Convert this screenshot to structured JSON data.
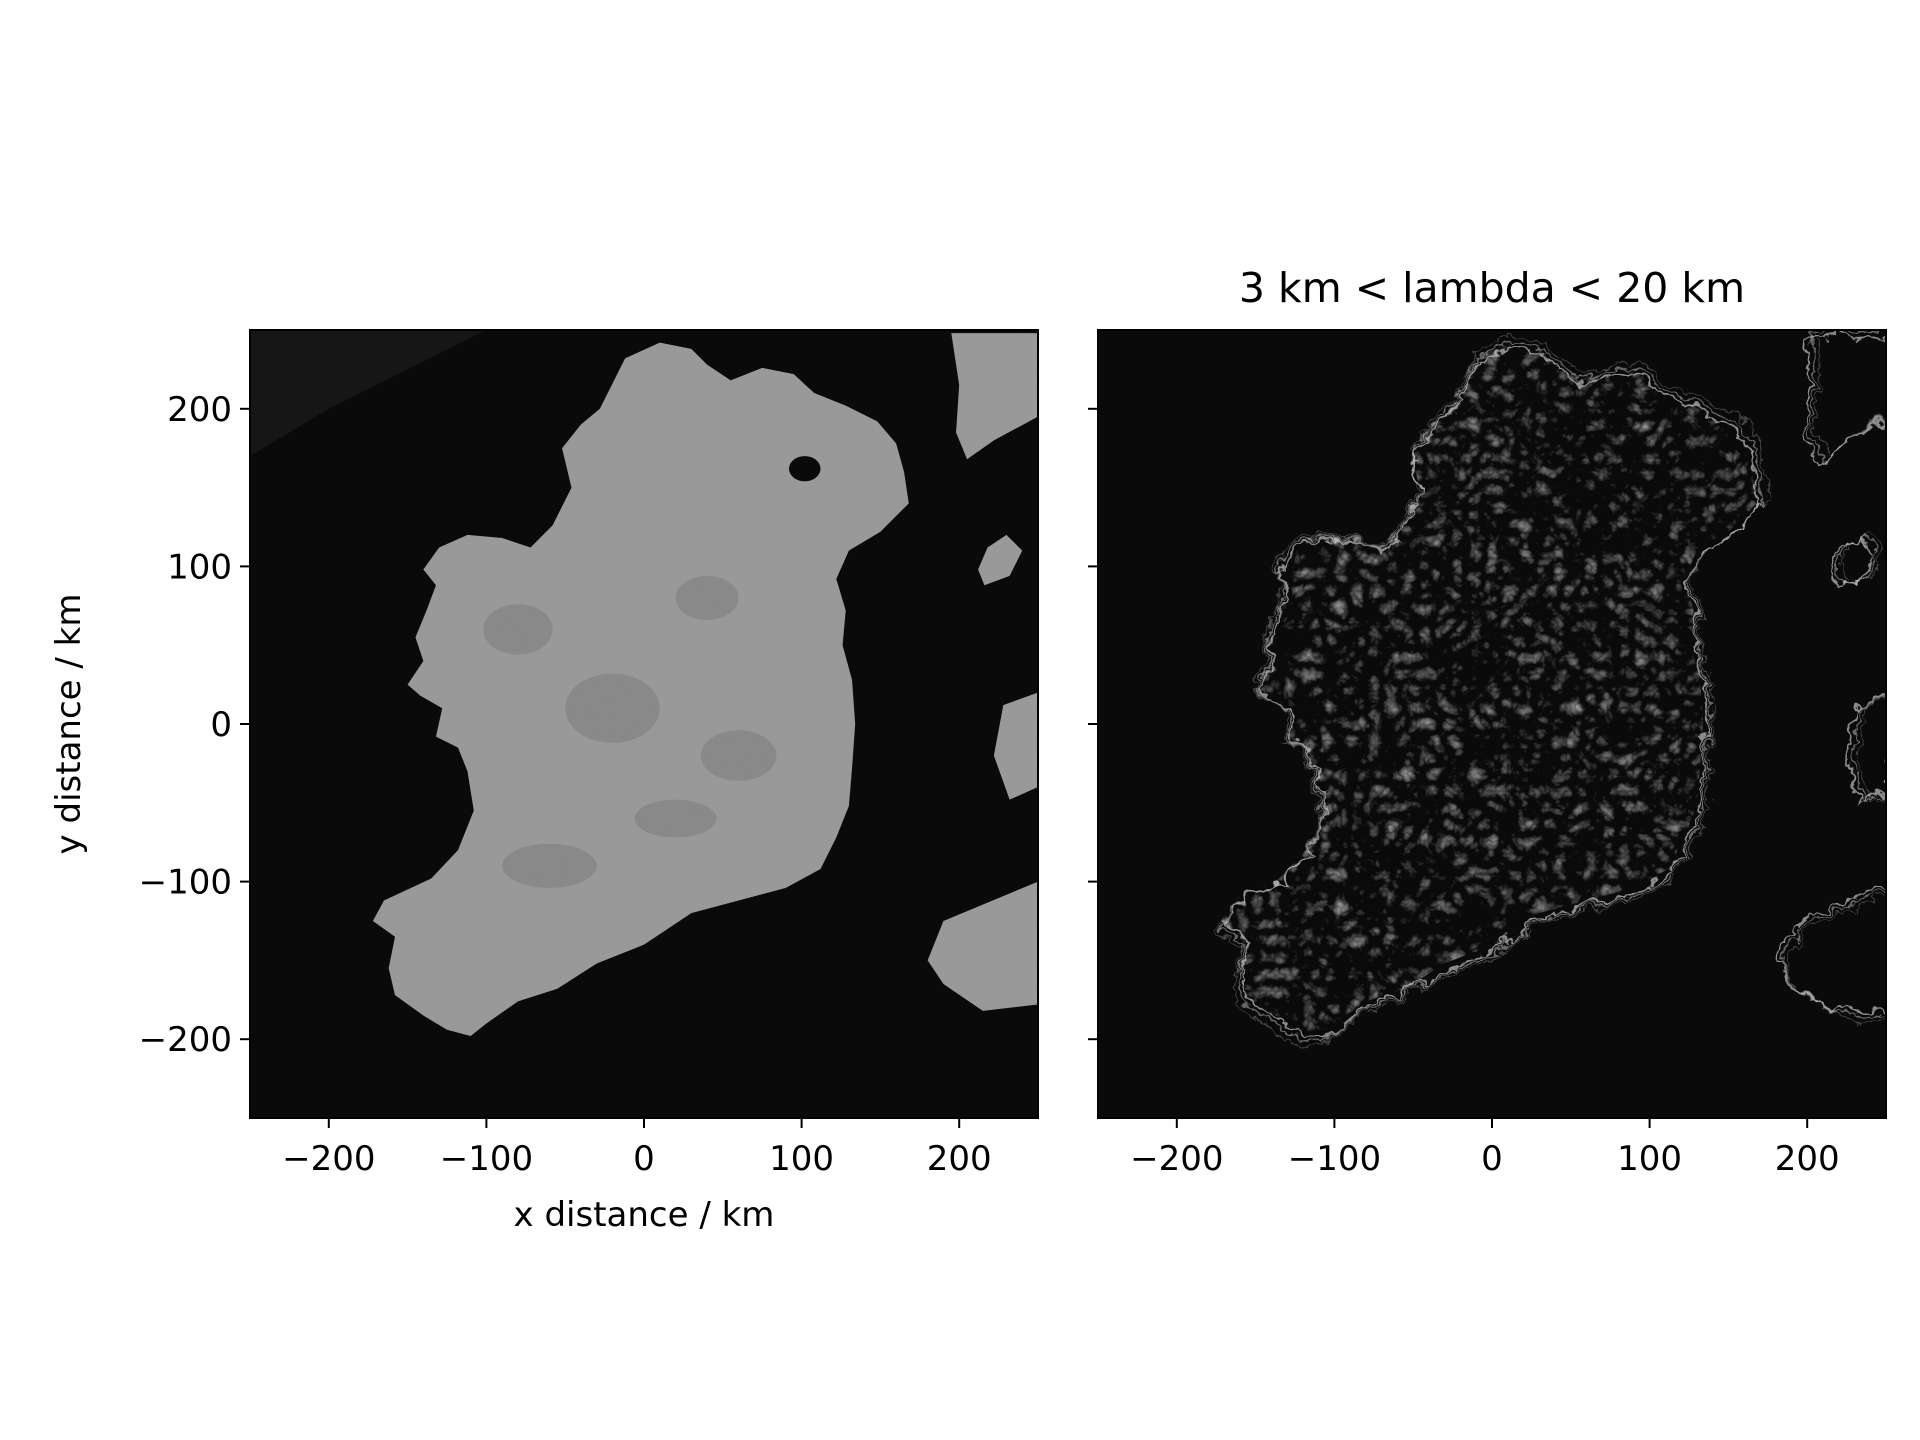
{
  "figure": {
    "colors": {
      "background": "#ffffff",
      "panel_background": "#0a0a0a",
      "land": "#9c9c9c",
      "land_dark": "#7f7f7f",
      "edge_highlight": "#b8b8b8",
      "axis": "#000000"
    },
    "panels": [
      {
        "id": "original",
        "title": "",
        "xlabel": "x distance / km",
        "ylabel": "y distance / km",
        "xlim": [
          -250,
          250
        ],
        "ylim": [
          -250,
          250
        ],
        "xticks": [
          -200,
          -100,
          0,
          100,
          200
        ],
        "yticks": [
          -200,
          -100,
          0,
          100,
          200
        ],
        "xtick_labels": [
          "−200",
          "−100",
          "0",
          "100",
          "200"
        ],
        "ytick_labels": [
          "−200",
          "−100",
          "0",
          "100",
          "200"
        ],
        "style": "satellite image"
      },
      {
        "id": "bandpass",
        "title": "3 km < lambda < 20 km",
        "xlabel": "",
        "ylabel": "",
        "xlim": [
          -250,
          250
        ],
        "ylim": [
          -250,
          250
        ],
        "xticks": [
          -200,
          -100,
          0,
          100,
          200
        ],
        "yticks": [
          -200,
          -100,
          0,
          100,
          200
        ],
        "xtick_labels": [
          "−200",
          "−100",
          "0",
          "100",
          "200"
        ],
        "ytick_labels": [],
        "style": "band-pass filtered edges"
      }
    ]
  }
}
